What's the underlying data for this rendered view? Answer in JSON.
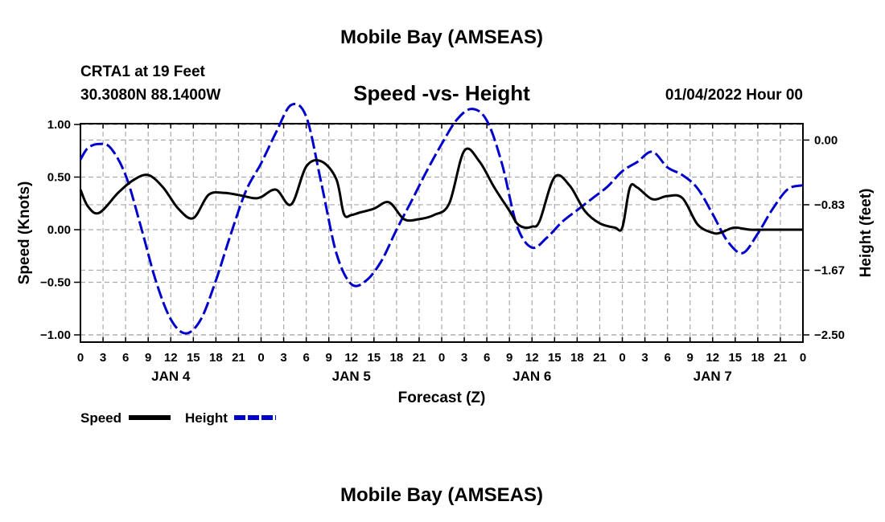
{
  "header": {
    "title": "Mobile Bay (AMSEAS)",
    "station": "CRTA1 at 19 Feet",
    "coords": "30.3080N  88.1400W",
    "subtitle": "Speed -vs- Height",
    "date": "01/04/2022 Hour 00"
  },
  "footer": {
    "next_title": "Mobile Bay (AMSEAS)"
  },
  "legend": {
    "speed_label": "Speed",
    "height_label": "Height"
  },
  "chart_data": {
    "type": "line",
    "title": "Speed -vs- Height",
    "xlabel": "Forecast (Z)",
    "ylabel": "Speed (Knots)",
    "y2label": "Height (feet)",
    "ylim": [
      -1.0,
      1.0
    ],
    "y2lim": [
      -2.5,
      0.2
    ],
    "xlim": [
      0,
      96
    ],
    "yticks": [
      "1.00",
      "0.50",
      "0.00",
      "-0.50",
      "-1.00"
    ],
    "y2ticks": [
      "0.00",
      "-0.83",
      "-1.67",
      "-2.50"
    ],
    "xtick_labels": [
      "0",
      "3",
      "6",
      "9",
      "12",
      "15",
      "18",
      "21",
      "0",
      "3",
      "6",
      "9",
      "12",
      "15",
      "18",
      "21",
      "0",
      "3",
      "6",
      "9",
      "12",
      "15",
      "18",
      "21",
      "0",
      "3",
      "6",
      "9",
      "12",
      "15",
      "18",
      "21",
      "0"
    ],
    "day_labels": [
      "JAN 4",
      "JAN 5",
      "JAN 6",
      "JAN 7"
    ],
    "grid": true,
    "legend_position": "bottom-left",
    "series": [
      {
        "name": "Speed",
        "color": "#000000",
        "style": "solid",
        "axis": "left",
        "x": [
          0,
          1,
          2.5,
          5,
          7,
          9,
          11,
          13,
          15,
          17,
          19,
          21,
          23,
          24,
          26,
          28,
          30,
          32,
          34,
          35,
          36,
          37,
          39,
          41,
          43,
          45,
          47,
          49,
          51,
          53,
          55,
          57,
          58,
          59,
          60,
          61,
          63,
          65,
          67,
          69,
          71,
          72,
          73,
          74,
          76,
          78,
          80,
          82,
          84,
          85,
          86,
          87,
          89,
          91,
          93,
          95,
          96
        ],
        "y": [
          0.38,
          0.22,
          0.16,
          0.35,
          0.47,
          0.52,
          0.4,
          0.2,
          0.11,
          0.33,
          0.35,
          0.33,
          0.3,
          0.31,
          0.38,
          0.24,
          0.6,
          0.65,
          0.48,
          0.15,
          0.14,
          0.16,
          0.2,
          0.26,
          0.1,
          0.1,
          0.14,
          0.25,
          0.75,
          0.65,
          0.4,
          0.18,
          0.06,
          0.02,
          0.03,
          0.08,
          0.5,
          0.42,
          0.18,
          0.06,
          0.02,
          0.02,
          0.4,
          0.4,
          0.29,
          0.32,
          0.3,
          0.05,
          -0.03,
          -0.03,
          0.0,
          0.02,
          0.0,
          0.0,
          0.0,
          0.0,
          0.0
        ]
      },
      {
        "name": "Height",
        "color": "#0000cc",
        "style": "dashed",
        "axis": "right",
        "x": [
          0,
          1,
          2.5,
          4,
          6,
          8,
          10,
          12,
          14,
          16,
          18,
          20,
          22,
          24,
          26,
          28,
          30,
          32,
          34,
          36,
          38,
          40,
          42,
          44,
          46,
          48,
          50,
          52,
          54,
          56,
          58,
          60,
          62,
          64,
          66,
          68,
          70,
          72,
          74,
          76,
          78,
          80,
          82,
          84,
          86,
          88,
          90,
          92,
          94,
          96
        ],
        "y": [
          -0.25,
          -0.1,
          -0.05,
          -0.1,
          -0.45,
          -1.1,
          -1.8,
          -2.3,
          -2.48,
          -2.3,
          -1.8,
          -1.2,
          -0.65,
          -0.3,
          0.1,
          0.45,
          0.3,
          -0.55,
          -1.45,
          -1.85,
          -1.8,
          -1.55,
          -1.15,
          -0.78,
          -0.4,
          -0.05,
          0.26,
          0.4,
          0.25,
          -0.3,
          -1.1,
          -1.38,
          -1.25,
          -1.05,
          -0.9,
          -0.75,
          -0.6,
          -0.4,
          -0.28,
          -0.15,
          -0.35,
          -0.45,
          -0.62,
          -0.95,
          -1.3,
          -1.45,
          -1.2,
          -0.88,
          -0.63,
          -0.58
        ]
      }
    ]
  }
}
